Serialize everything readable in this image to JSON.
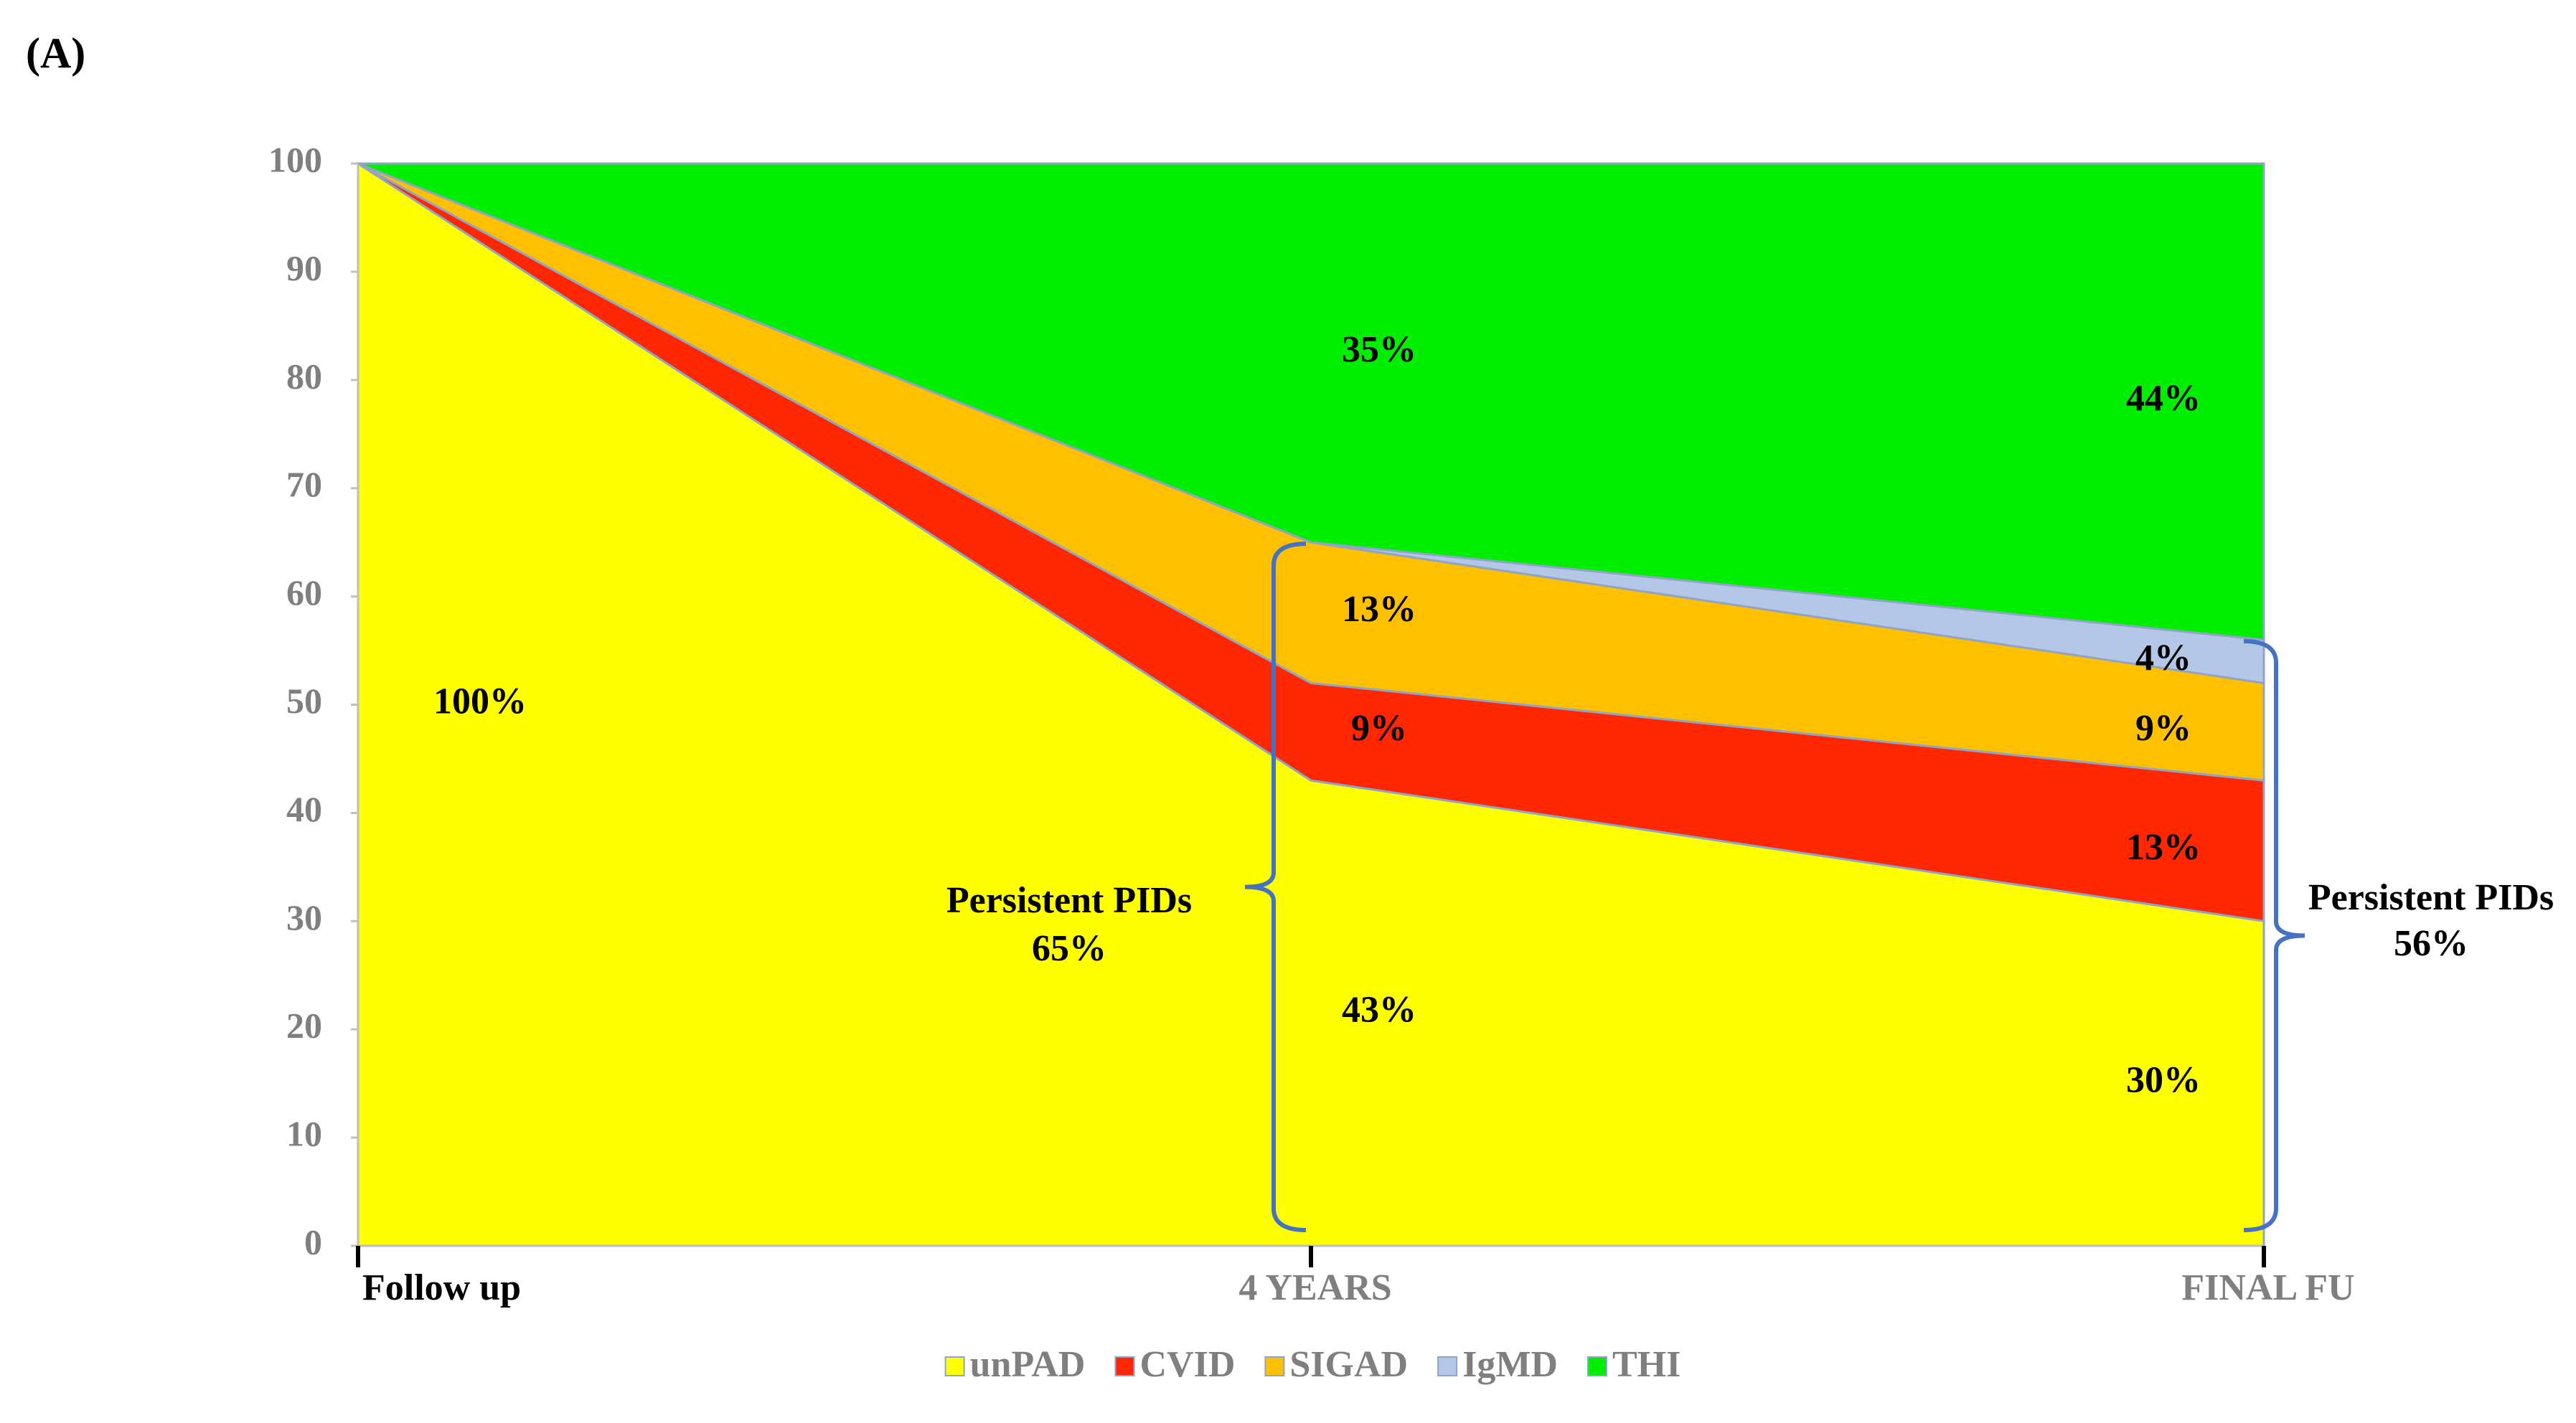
{
  "panel_label": "(A)",
  "chart_data": {
    "type": "stacked-area",
    "categories": [
      "Follow up",
      "4 YEARS",
      "FINAL FU"
    ],
    "series": [
      {
        "name": "unPAD",
        "color": "#ffff00",
        "values": [
          100,
          43,
          30
        ],
        "value_labels": [
          "100%",
          "43%",
          "30%"
        ]
      },
      {
        "name": "CVID",
        "color": "#ff2600",
        "values": [
          0,
          9,
          13
        ],
        "value_labels": [
          null,
          "9%",
          "13%"
        ]
      },
      {
        "name": "SIGAD",
        "color": "#ffc000",
        "values": [
          0,
          13,
          9
        ],
        "value_labels": [
          null,
          "13%",
          "9%"
        ]
      },
      {
        "name": "IgMD",
        "color": "#b4c7e7",
        "values": [
          0,
          0,
          4
        ],
        "value_labels": [
          null,
          null,
          "4%"
        ]
      },
      {
        "name": "THI",
        "color": "#00ee00",
        "values": [
          0,
          35,
          44
        ],
        "value_labels": [
          null,
          "35%",
          "44%"
        ]
      }
    ],
    "ylim": [
      0,
      100
    ],
    "yticks": [
      0,
      10,
      20,
      30,
      40,
      50,
      60,
      70,
      80,
      90,
      100
    ],
    "annotations": [
      {
        "label": "Persistent PIDs",
        "value": "65%"
      },
      {
        "label": "Persistent PIDs",
        "value": "56%"
      }
    ]
  }
}
